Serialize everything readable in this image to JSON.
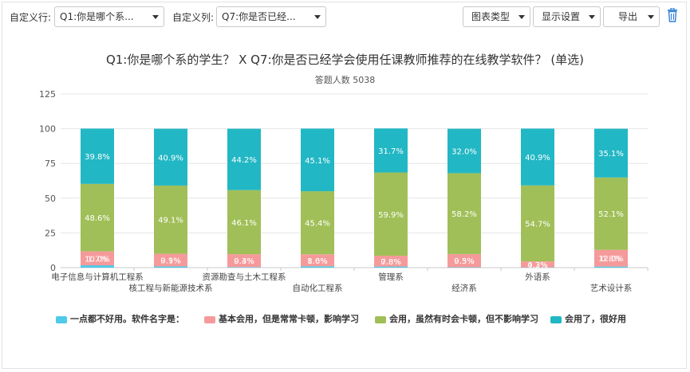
{
  "toolbar": {
    "row_label": "自定义行:",
    "row_value": "Q1:你是哪个系...",
    "col_label": "自定义列:",
    "col_value": "Q7:你是否已经...",
    "chart_type_label": "图表类型",
    "display_settings_label": "显示设置",
    "export_label": "导出",
    "trash_icon": "trash-icon"
  },
  "colors": {
    "series1": "#4ecbe8",
    "series2": "#f59a9a",
    "series3": "#a0bf58",
    "series4": "#22b7c4"
  },
  "chart_data": {
    "type": "bar",
    "stacked": true,
    "title": "Q1:你是哪个系的学生？ X Q7:你是否已经学会使用任课教师推荐的在线教学软件？ (单选)",
    "subtitle": "答题人数 5038",
    "categories": [
      "电子信息与计算机工程系",
      "核工程与新能源技术系",
      "资源勘查与土木工程系",
      "自动化工程系",
      "管理系",
      "经济系",
      "外语系",
      "艺术设计系"
    ],
    "ylim": [
      0,
      125
    ],
    "yticks": [
      0,
      25,
      50,
      75,
      100,
      125
    ],
    "grid": true,
    "legend_position": "bottom",
    "series": [
      {
        "name": "一点都不好用。软件名字是：",
        "values": [
          1.7,
          0.9,
          0.4,
          1.0,
          0.8,
          0.3,
          0.2,
          0.8
        ],
        "labels": [
          "1.7%",
          "0.9%",
          "0.4%",
          "1.0%",
          "0.8%",
          "0.3%",
          "0.2%",
          "0.8%"
        ]
      },
      {
        "name": "基本会用，但是常常卡顿，影响学习",
        "values": [
          10.0,
          9.1,
          9.3,
          8.6,
          7.8,
          9.5,
          4.3,
          12.0
        ],
        "labels": [
          "10.0%",
          "9.1%",
          "9.3%",
          "8.6%",
          "7.8%",
          "9.5%",
          "4.3%",
          "12.0%"
        ]
      },
      {
        "name": "会用，虽然有时会卡顿，但不影响学习",
        "values": [
          48.6,
          49.1,
          46.1,
          45.4,
          59.9,
          58.2,
          54.7,
          52.1
        ],
        "labels": [
          "48.6%",
          "49.1%",
          "46.1%",
          "45.4%",
          "59.9%",
          "58.2%",
          "54.7%",
          "52.1%"
        ]
      },
      {
        "name": "会用了，很好用",
        "values": [
          39.8,
          40.9,
          44.2,
          45.1,
          31.7,
          32.0,
          40.9,
          35.1
        ],
        "labels": [
          "39.8%",
          "40.9%",
          "44.2%",
          "45.1%",
          "31.7%",
          "32.0%",
          "40.9%",
          "35.1%"
        ]
      }
    ]
  }
}
